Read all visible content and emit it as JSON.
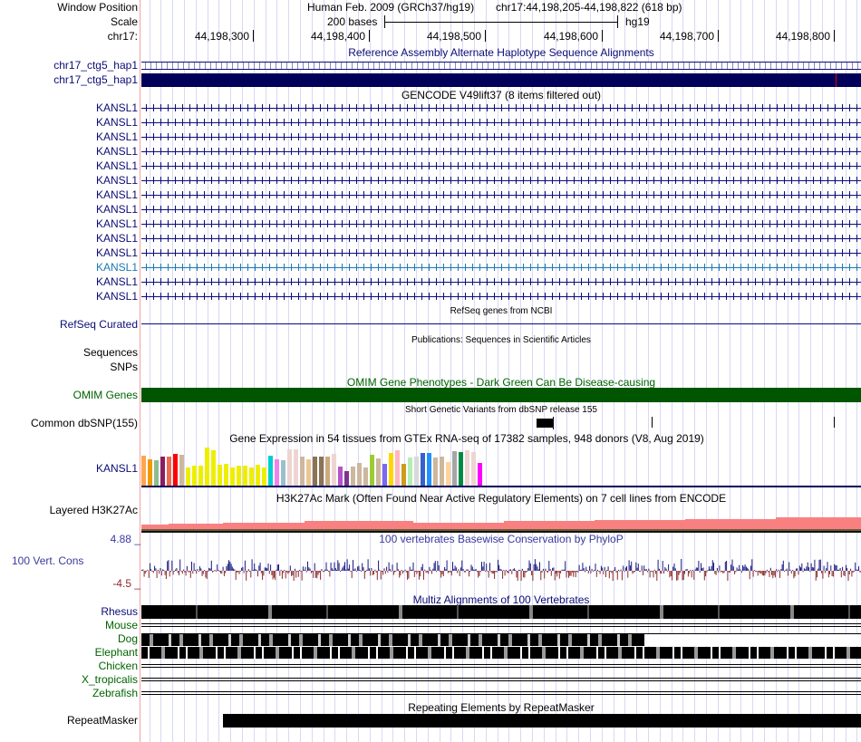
{
  "header": {
    "window_position_label": "Window Position",
    "assembly": "Human Feb. 2009 (GRCh37/hg19)",
    "position": "chr17:44,198,205-44,198,822 (618 bp)",
    "scale_label": "Scale",
    "scale_value": "200 bases",
    "scale_db": "hg19",
    "chrom_label": "chr17:",
    "ticks": [
      "44,198,300",
      "44,198,400",
      "44,198,500",
      "44,198,600",
      "44,198,700",
      "44,198,800"
    ]
  },
  "tracks": {
    "alt_haplotype": {
      "title": "Reference Assembly Alternate Haplotype Sequence Alignments",
      "rows": [
        "chr17_ctg5_hap1",
        "chr17_ctg5_hap1"
      ]
    },
    "gencode": {
      "title": "GENCODE V49lift37 (8 items filtered out)",
      "rows": [
        "KANSL1",
        "KANSL1",
        "KANSL1",
        "KANSL1",
        "KANSL1",
        "KANSL1",
        "KANSL1",
        "KANSL1",
        "KANSL1",
        "KANSL1",
        "KANSL1",
        "KANSL1",
        "KANSL1",
        "KANSL1"
      ],
      "highlighted_index": 11
    },
    "refseq": {
      "title": "RefSeq genes from NCBI",
      "label": "RefSeq Curated"
    },
    "publications": {
      "title": "Publications: Sequences in Scientific Articles",
      "labels": [
        "Sequences",
        "SNPs"
      ]
    },
    "omim": {
      "title": "OMIM Gene Phenotypes - Dark Green Can Be Disease-causing",
      "label": "OMIM Genes",
      "color": "#005500"
    },
    "dbsnp": {
      "title": "Short Genetic Variants from dbSNP release 155",
      "label": "Common dbSNP(155)"
    },
    "gtex": {
      "title": "Gene Expression in 54 tissues from GTEx RNA-seq of 17382 samples, 948 donors (V8, Aug 2019)",
      "label": "KANSL1",
      "relative_expression": [
        0.78,
        0.7,
        0.66,
        0.75,
        0.75,
        0.83,
        0.8,
        0.48,
        0.52,
        0.52,
        1.0,
        0.94,
        0.55,
        0.57,
        0.48,
        0.53,
        0.53,
        0.47,
        0.55,
        0.48,
        0.78,
        0.7,
        0.66,
        0.95,
        0.95,
        0.77,
        0.68,
        0.77,
        0.75,
        0.77,
        0.83,
        0.5,
        0.38,
        0.5,
        0.6,
        0.47,
        0.8,
        0.72,
        0.58,
        0.85,
        0.92,
        0.58,
        0.74,
        0.77,
        0.85,
        0.85,
        0.74,
        0.76,
        0.63,
        0.9,
        0.88,
        0.93,
        0.88,
        0.6
      ],
      "colors": [
        "#FFA54F",
        "#EE9A00",
        "#8FBC8F",
        "#8B1C62",
        "#EE6A50",
        "#FF0000",
        "#CDB79E",
        "#EEEE00",
        "#EEEE00",
        "#EEEE00",
        "#EEEE00",
        "#EEEE00",
        "#EEEE00",
        "#EEEE00",
        "#EEEE00",
        "#EEEE00",
        "#EEEE00",
        "#EEEE00",
        "#EEEE00",
        "#EEEE00",
        "#00CED1",
        "#EE82EE",
        "#9AC0CD",
        "#EED5D2",
        "#EED5D2",
        "#CDB79E",
        "#EEC591",
        "#8B7355",
        "#8B7355",
        "#CDAA7D",
        "#EED5D2",
        "#B452CD",
        "#7A378B",
        "#CDB79E",
        "#CDB79E",
        "#CDB79E",
        "#9ACD32",
        "#CDB79E",
        "#7B68EE",
        "#FFD700",
        "#FFB6C1",
        "#CD9B1D",
        "#B4EEB4",
        "#D9D9D9",
        "#3A5FCD",
        "#1E90FF",
        "#CDB79E",
        "#CDB79E",
        "#FFD39B",
        "#A6A6A6",
        "#008B45",
        "#EED5D2",
        "#EED5D2",
        "#FF00FF"
      ]
    },
    "h3k27ac": {
      "title": "H3K27Ac Mark (Often Found Near Active Regulatory Elements) on 7 cell lines from ENCODE",
      "label": "Layered H3K27Ac"
    },
    "phylop": {
      "title": "100 vertebrates Basewise Conservation by PhyloP",
      "label": "100 Vert. Cons",
      "max": "4.88 _",
      "min": "-4.5 _"
    },
    "multiz": {
      "title": "Multiz Alignments of 100 Vertebrates",
      "species": [
        "Rhesus",
        "Mouse",
        "Dog",
        "Elephant",
        "Chicken",
        "X_tropicalis",
        "Zebrafish"
      ]
    },
    "repeatmasker": {
      "title": "Repeating Elements by RepeatMasker",
      "label": "RepeatMasker"
    }
  }
}
